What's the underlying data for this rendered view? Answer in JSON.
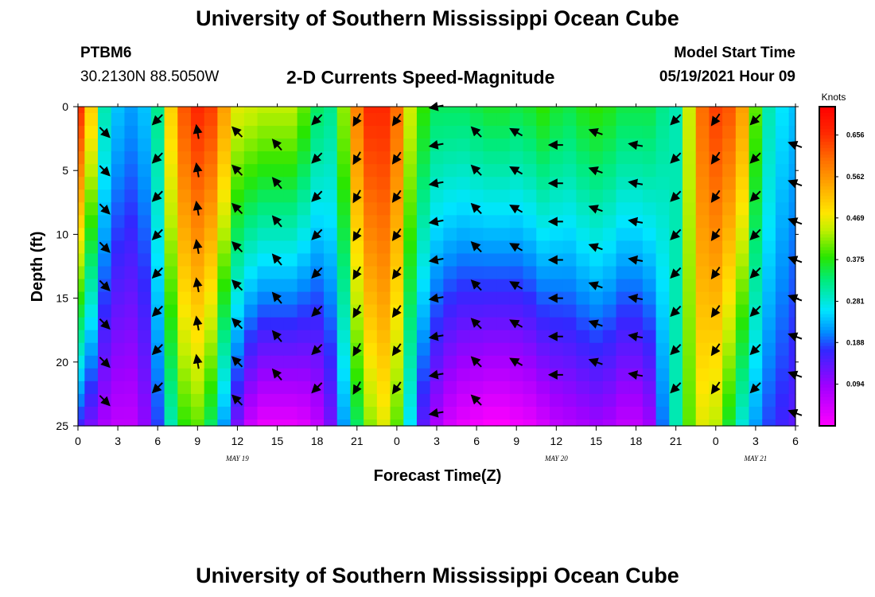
{
  "header": {
    "title": "University of Southern Mississippi Ocean Cube",
    "station": "PTBM6",
    "coords": "30.2130N  88.5050W",
    "subtitle": "2-D Currents Speed-Magnitude",
    "model_start_label": "Model Start Time",
    "model_start_value": "05/19/2021 Hour 09"
  },
  "footer": {
    "title": "University of Southern Mississippi Ocean Cube"
  },
  "chart_data": {
    "type": "heatmap",
    "title": "2-D Currents Speed-Magnitude",
    "xlabel": "Forecast Time(Z)",
    "ylabel": "Depth (ft)",
    "x_range_hours": [
      0,
      54
    ],
    "x_tick_labels": [
      "0",
      "3",
      "6",
      "9",
      "12",
      "15",
      "18",
      "21",
      "0",
      "3",
      "6",
      "9",
      "12",
      "15",
      "18",
      "21",
      "0",
      "3",
      "6"
    ],
    "date_labels": [
      {
        "hour": 12,
        "label": "MAY 19"
      },
      {
        "hour": 36,
        "label": "MAY 20"
      },
      {
        "hour": 51,
        "label": "MAY 21"
      }
    ],
    "y_range_ft": [
      0,
      25
    ],
    "y_ticks": [
      0,
      5,
      10,
      15,
      20,
      25
    ],
    "colorbar": {
      "unit": "Knots",
      "ticks": [
        "0.656",
        "0.562",
        "0.469",
        "0.375",
        "0.281",
        "0.188",
        "0.094"
      ],
      "range": [
        0,
        0.72
      ]
    },
    "speed_profiles_surface_bottom": {
      "hours": [
        0,
        1,
        2,
        3,
        4,
        5,
        6,
        7,
        8,
        9,
        10,
        11,
        12,
        13,
        14,
        15,
        16,
        17,
        18,
        19,
        20,
        21,
        22,
        23,
        24,
        25,
        26,
        27,
        28,
        29,
        30,
        31,
        32,
        33,
        34,
        35,
        36,
        37,
        38,
        39,
        40,
        41,
        42,
        43,
        44,
        45,
        46,
        47,
        48,
        49,
        50,
        51,
        52,
        53,
        54
      ],
      "surface": [
        0.65,
        0.5,
        0.3,
        0.24,
        0.22,
        0.24,
        0.32,
        0.5,
        0.62,
        0.66,
        0.64,
        0.55,
        0.46,
        0.45,
        0.44,
        0.44,
        0.44,
        0.4,
        0.34,
        0.32,
        0.42,
        0.58,
        0.66,
        0.66,
        0.6,
        0.45,
        0.38,
        0.34,
        0.34,
        0.34,
        0.35,
        0.36,
        0.36,
        0.35,
        0.36,
        0.38,
        0.36,
        0.35,
        0.37,
        0.38,
        0.37,
        0.35,
        0.35,
        0.35,
        0.32,
        0.3,
        0.45,
        0.6,
        0.64,
        0.62,
        0.55,
        0.4,
        0.3,
        0.26,
        0.24
      ],
      "bottom": [
        0.16,
        0.12,
        0.08,
        0.06,
        0.06,
        0.1,
        0.18,
        0.3,
        0.38,
        0.4,
        0.34,
        0.22,
        0.12,
        0.05,
        0.02,
        0.02,
        0.02,
        0.03,
        0.06,
        0.12,
        0.22,
        0.34,
        0.42,
        0.46,
        0.4,
        0.26,
        0.14,
        0.08,
        0.04,
        0.02,
        0.01,
        0.0,
        0.0,
        0.01,
        0.02,
        0.04,
        0.06,
        0.07,
        0.08,
        0.09,
        0.08,
        0.06,
        0.06,
        0.09,
        0.2,
        0.3,
        0.4,
        0.46,
        0.44,
        0.36,
        0.28,
        0.22,
        0.18,
        0.16,
        0.14
      ]
    },
    "current_vectors": [
      {
        "hour": 2,
        "dir_deg": 135,
        "rows": [
          2,
          5,
          8,
          11,
          14,
          17,
          20,
          23
        ]
      },
      {
        "hour": 6,
        "dir_deg": 225,
        "rows": [
          1,
          4,
          7,
          10,
          13,
          16,
          19,
          22
        ]
      },
      {
        "hour": 9,
        "dir_deg": 350,
        "rows": [
          2,
          5,
          8,
          11,
          14,
          17,
          20
        ]
      },
      {
        "hour": 12,
        "dir_deg": 315,
        "rows": [
          2,
          5,
          8,
          11,
          14,
          17,
          20,
          23
        ]
      },
      {
        "hour": 15,
        "dir_deg": 320,
        "rows": [
          3,
          6,
          9,
          12,
          15,
          18,
          21
        ]
      },
      {
        "hour": 18,
        "dir_deg": 225,
        "rows": [
          1,
          4,
          7,
          10,
          13,
          16,
          19,
          22
        ]
      },
      {
        "hour": 21,
        "dir_deg": 210,
        "rows": [
          1,
          4,
          7,
          10,
          13,
          16,
          19,
          22
        ]
      },
      {
        "hour": 24,
        "dir_deg": 215,
        "rows": [
          1,
          4,
          7,
          10,
          13,
          16,
          19,
          22
        ]
      },
      {
        "hour": 27,
        "dir_deg": 260,
        "rows": [
          0,
          3,
          6,
          9,
          12,
          15,
          18,
          21,
          24
        ]
      },
      {
        "hour": 30,
        "dir_deg": 315,
        "rows": [
          2,
          5,
          8,
          11,
          14,
          17,
          20,
          23
        ]
      },
      {
        "hour": 33,
        "dir_deg": 300,
        "rows": [
          2,
          5,
          8,
          11,
          14,
          17,
          20
        ]
      },
      {
        "hour": 36,
        "dir_deg": 270,
        "rows": [
          3,
          6,
          9,
          12,
          15,
          18,
          21
        ]
      },
      {
        "hour": 39,
        "dir_deg": 290,
        "rows": [
          2,
          5,
          8,
          11,
          14,
          17,
          20
        ]
      },
      {
        "hour": 42,
        "dir_deg": 280,
        "rows": [
          3,
          6,
          9,
          12,
          15,
          18,
          21
        ]
      },
      {
        "hour": 45,
        "dir_deg": 225,
        "rows": [
          1,
          4,
          7,
          10,
          13,
          16,
          19,
          22
        ]
      },
      {
        "hour": 48,
        "dir_deg": 215,
        "rows": [
          1,
          4,
          7,
          10,
          13,
          16,
          19,
          22
        ]
      },
      {
        "hour": 51,
        "dir_deg": 225,
        "rows": [
          1,
          4,
          7,
          10,
          13,
          16,
          19,
          22
        ]
      },
      {
        "hour": 54,
        "dir_deg": 290,
        "rows": [
          3,
          6,
          9,
          12,
          15,
          18,
          21,
          24
        ]
      }
    ]
  }
}
